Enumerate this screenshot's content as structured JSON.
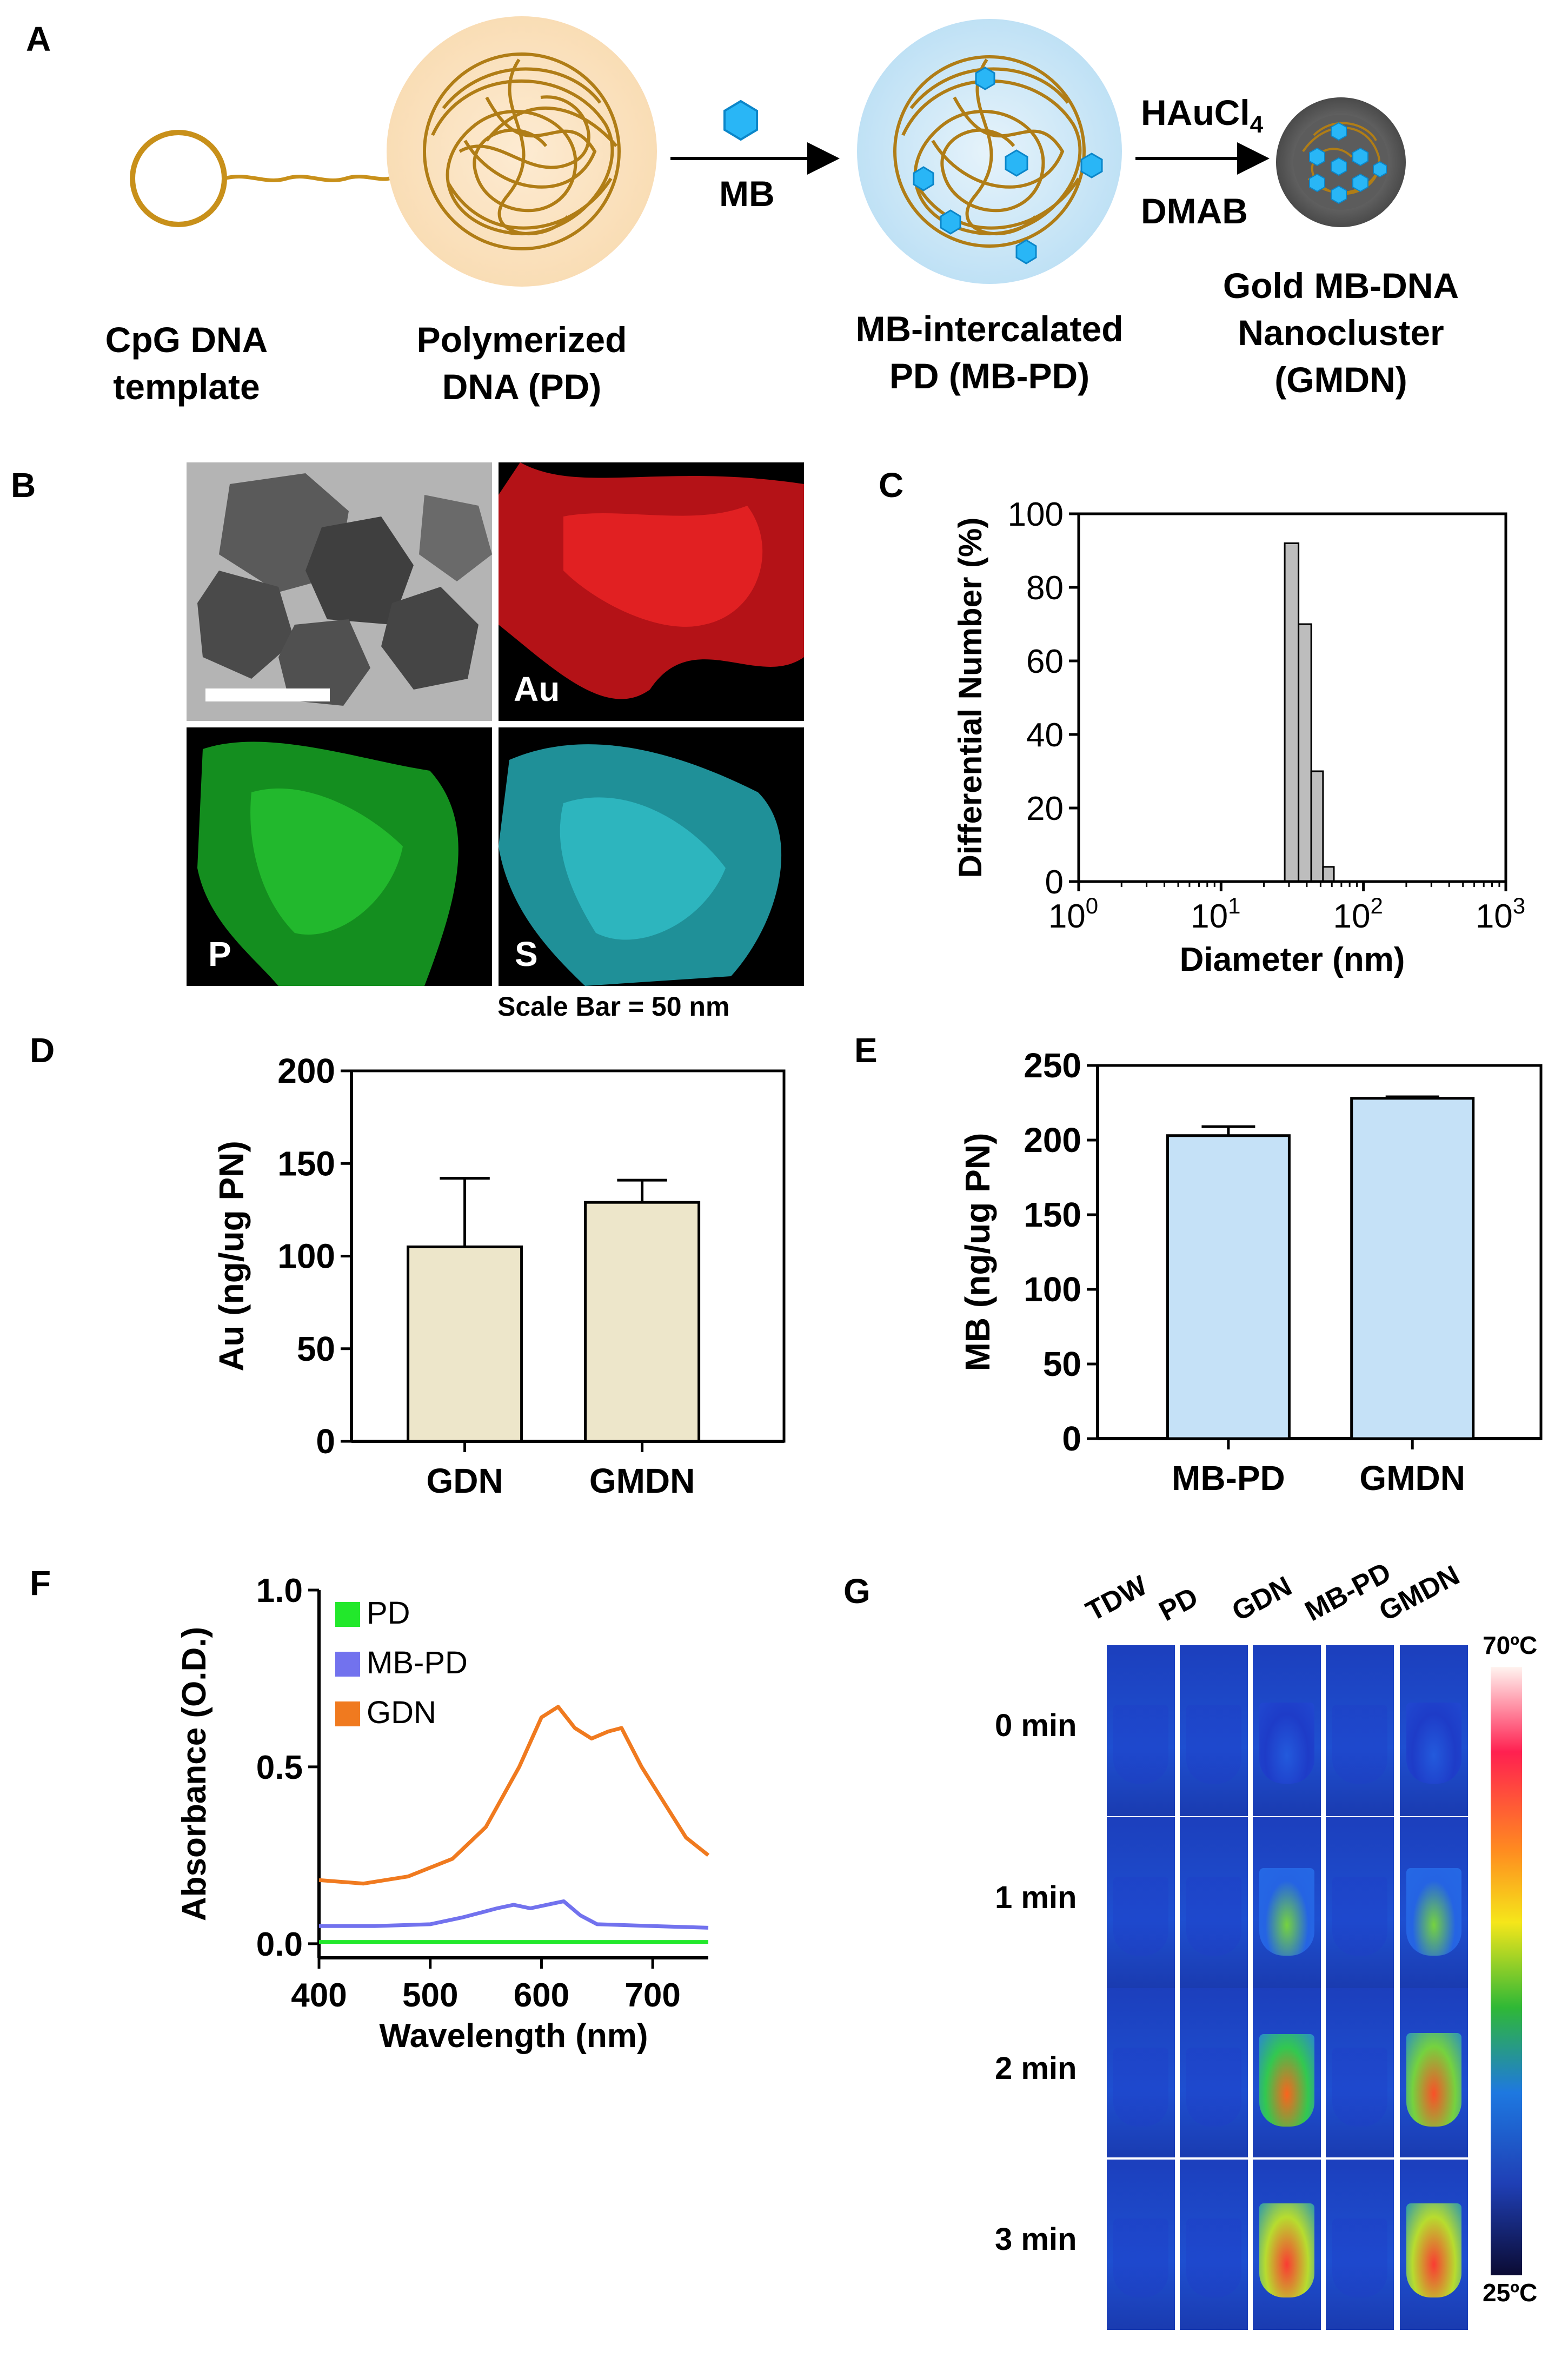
{
  "panel_letters": {
    "a": "A",
    "b": "B",
    "c": "C",
    "d": "D",
    "e": "E",
    "f": "F",
    "g": "G"
  },
  "panelA": {
    "step1_caption": [
      "CpG DNA",
      "template"
    ],
    "step2_caption": [
      "Polymerized",
      "DNA (PD)"
    ],
    "step3_caption": [
      "MB-intercalated",
      "PD (MB-PD)"
    ],
    "step4_caption": [
      "Gold MB-DNA",
      "Nanocluster",
      "(GMDN)"
    ],
    "arrow1_label": "MB",
    "arrow2_top": "HAuCl",
    "arrow2_sub": "4",
    "arrow2_bottom": "DMAB",
    "colors": {
      "dna": "#b8860b",
      "mb": "#29b6f6",
      "halo_pd": "#fbe3c0",
      "halo_mb": "#cfe9f8"
    }
  },
  "panelB": {
    "tiles": [
      {
        "label": "",
        "color": "#8a8a8a"
      },
      {
        "label": "Au",
        "color": "#e8191c"
      },
      {
        "label": "P",
        "color": "#1fbf2a"
      },
      {
        "label": "S",
        "color": "#2ec4cf"
      }
    ],
    "scale_text": "Scale  Bar = 50 nm"
  },
  "chart_data": [
    {
      "id": "C",
      "type": "bar",
      "xlabel": "Diameter (nm)",
      "ylabel": "Differential Number (%)",
      "xscale": "log",
      "xlim": [
        1,
        1000
      ],
      "ylim": [
        0,
        100
      ],
      "yticks": [
        "0",
        "20",
        "40",
        "60",
        "80",
        "100"
      ],
      "xticks": [
        {
          "base": "10",
          "exp": "0"
        },
        {
          "base": "10",
          "exp": "1"
        },
        {
          "base": "10",
          "exp": "2"
        },
        {
          "base": "10",
          "exp": "3"
        }
      ],
      "bars": [
        {
          "x0": 28,
          "x1": 35,
          "value": 92
        },
        {
          "x0": 35,
          "x1": 43,
          "value": 70
        },
        {
          "x0": 43,
          "x1": 52,
          "value": 30
        },
        {
          "x0": 52,
          "x1": 62,
          "value": 4
        }
      ],
      "bar_color": "#bdbdbd"
    },
    {
      "id": "D",
      "type": "bar",
      "categories": [
        "GDN",
        "GMDN"
      ],
      "values": [
        105,
        129
      ],
      "errors": [
        37,
        12
      ],
      "ylabel": "Au (ng/ug PN)",
      "ylim": [
        0,
        200
      ],
      "yticks": [
        "0",
        "50",
        "100",
        "150",
        "200"
      ],
      "bar_color": "#ede6ca"
    },
    {
      "id": "E",
      "type": "bar",
      "categories": [
        "MB-PD",
        "GMDN"
      ],
      "values": [
        203,
        228
      ],
      "errors": [
        6,
        1
      ],
      "ylabel": "MB (ng/ug PN)",
      "ylim": [
        0,
        250
      ],
      "yticks": [
        "0",
        "50",
        "100",
        "150",
        "200",
        "250"
      ],
      "bar_color": "#c5e1f7"
    },
    {
      "id": "F",
      "type": "line",
      "xlabel": "Wavelength (nm)",
      "ylabel": "Absorbance (O.D.)",
      "xlim": [
        400,
        750
      ],
      "ylim": [
        -0.04,
        1.0
      ],
      "xticks": [
        "400",
        "500",
        "600",
        "700"
      ],
      "yticks": [
        "0.0",
        "0.5",
        "1.0"
      ],
      "series": [
        {
          "name": "PD",
          "color": "#22e82b",
          "x": [
            400,
            750
          ],
          "y": [
            0.005,
            0.005
          ]
        },
        {
          "name": "MB-PD",
          "color": "#7272ee",
          "x": [
            400,
            450,
            500,
            530,
            560,
            575,
            590,
            605,
            620,
            635,
            650,
            700,
            750
          ],
          "y": [
            0.05,
            0.05,
            0.055,
            0.075,
            0.1,
            0.11,
            0.1,
            0.11,
            0.12,
            0.08,
            0.055,
            0.05,
            0.045
          ]
        },
        {
          "name": "GDN",
          "color": "#f07a1f",
          "x": [
            400,
            440,
            480,
            520,
            550,
            580,
            600,
            615,
            630,
            645,
            660,
            672,
            690,
            710,
            730,
            750
          ],
          "y": [
            0.18,
            0.17,
            0.19,
            0.24,
            0.33,
            0.5,
            0.64,
            0.67,
            0.61,
            0.58,
            0.6,
            0.61,
            0.5,
            0.4,
            0.3,
            0.25
          ]
        }
      ]
    }
  ],
  "panelG": {
    "columns": [
      "TDW",
      "PD",
      "GDN",
      "MB-PD",
      "GMDN"
    ],
    "rows": [
      "0 min",
      "1 min",
      "2 min",
      "3 min"
    ],
    "colorbar_max": "70ºC",
    "colorbar_min": "25ºC",
    "heating": [
      [
        0,
        0,
        0.15,
        0,
        0.15
      ],
      [
        0,
        0,
        0.55,
        0,
        0.55
      ],
      [
        0,
        0,
        0.85,
        0,
        0.9
      ],
      [
        0,
        0,
        0.95,
        0,
        0.95
      ]
    ]
  }
}
